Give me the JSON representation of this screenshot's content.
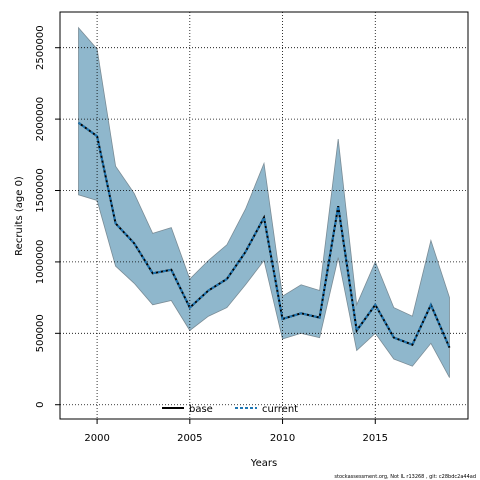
{
  "chart_data": {
    "type": "line",
    "title": "",
    "xlabel": "Years",
    "ylabel": "Recruits (age 0)",
    "xlim": [
      1998,
      2020
    ],
    "ylim": [
      -100000,
      2750000
    ],
    "xticks": [
      2000,
      2005,
      2010,
      2015
    ],
    "yticks": [
      0,
      500000,
      1000000,
      1500000,
      2000000,
      2500000
    ],
    "grid": true,
    "legend_position": "bottom-center",
    "x": [
      1999,
      2000,
      2001,
      2002,
      2003,
      2004,
      2005,
      2006,
      2007,
      2008,
      2009,
      2010,
      2011,
      2012,
      2013,
      2014,
      2015,
      2016,
      2017,
      2018,
      2019
    ],
    "series": [
      {
        "name": "base",
        "color": "#000000",
        "style": "solid",
        "values": [
          1975000,
          1880000,
          1270000,
          1130000,
          920000,
          945000,
          680000,
          800000,
          880000,
          1070000,
          1310000,
          600000,
          640000,
          610000,
          1390000,
          520000,
          700000,
          470000,
          420000,
          700000,
          400000
        ]
      },
      {
        "name": "current",
        "color": "#1f77b4",
        "style": "dashed",
        "values": [
          1975000,
          1880000,
          1270000,
          1130000,
          920000,
          945000,
          680000,
          800000,
          880000,
          1070000,
          1310000,
          600000,
          640000,
          610000,
          1390000,
          520000,
          700000,
          470000,
          420000,
          700000,
          400000
        ]
      }
    ],
    "band": {
      "color": "#8fb7cc",
      "upper": [
        2640000,
        2490000,
        1670000,
        1480000,
        1200000,
        1240000,
        880000,
        1010000,
        1120000,
        1370000,
        1690000,
        760000,
        840000,
        800000,
        1860000,
        700000,
        1000000,
        680000,
        620000,
        1150000,
        750000
      ],
      "lower": [
        1470000,
        1430000,
        970000,
        850000,
        700000,
        730000,
        520000,
        620000,
        680000,
        840000,
        1010000,
        460000,
        500000,
        470000,
        1030000,
        380000,
        500000,
        320000,
        270000,
        430000,
        190000
      ]
    }
  },
  "footer": "stockassessment.org, Not IL r13268 , git: c28bdc2a44ad"
}
